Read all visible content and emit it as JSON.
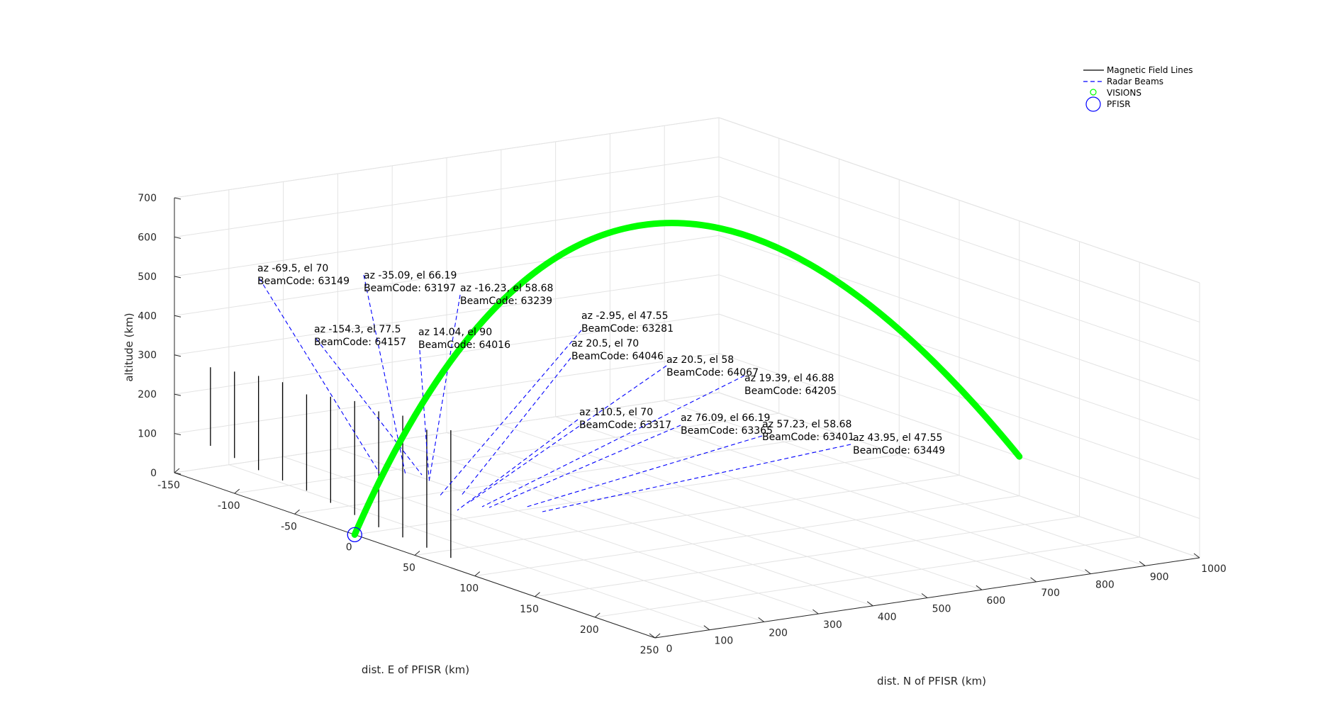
{
  "chart_data": {
    "type": "line3d",
    "axes": {
      "xlabel": "dist. E of PFISR (km)",
      "ylabel": "dist. N of PFISR (km)",
      "zlabel": "altitude (km)",
      "xlim": [
        -150,
        250
      ],
      "ylim": [
        0,
        1000
      ],
      "zlim": [
        0,
        700
      ],
      "xticks": [
        "-150",
        "-100",
        "-50",
        "0",
        "50",
        "100",
        "150",
        "200",
        "250"
      ],
      "yticks": [
        "0",
        "100",
        "200",
        "300",
        "400",
        "500",
        "600",
        "700",
        "800",
        "900",
        "1000"
      ],
      "zticks": [
        "0",
        "100",
        "200",
        "300",
        "400",
        "500",
        "600",
        "700"
      ],
      "grid": true
    },
    "legend": {
      "placement": "top-right",
      "entries": [
        {
          "label": "Magnetic Field Lines",
          "style": "solid",
          "color": "#000000"
        },
        {
          "label": "Radar Beams",
          "style": "dashed",
          "color": "#0000ff"
        },
        {
          "label": "VISIONS",
          "style": "marker-small-circle",
          "color": "#00ff00"
        },
        {
          "label": "PFISR",
          "style": "marker-large-circle",
          "color": "#0000ff"
        }
      ]
    },
    "pfisr": {
      "x": 0,
      "y": 0,
      "z": 0
    },
    "visions_trajectory": {
      "apex": {
        "x": 40,
        "y": 450,
        "z": 740
      },
      "end": {
        "x": 100,
        "y": 1000,
        "z": 100
      }
    },
    "field_lines": [
      {
        "x": -120,
        "y": 0,
        "z0": 300,
        "z1": 100
      },
      {
        "x": -100,
        "y": 0,
        "z0": 310,
        "z1": 90
      },
      {
        "x": -80,
        "y": 0,
        "z0": 320,
        "z1": 80
      },
      {
        "x": -60,
        "y": 0,
        "z0": 325,
        "z1": 75
      },
      {
        "x": -40,
        "y": 0,
        "z0": 315,
        "z1": 70
      },
      {
        "x": -20,
        "y": 0,
        "z0": 330,
        "z1": 60
      },
      {
        "x": 0,
        "y": 0,
        "z0": 340,
        "z1": 50
      },
      {
        "x": 20,
        "y": 0,
        "z0": 335,
        "z1": 40
      },
      {
        "x": 40,
        "y": 0,
        "z0": 345,
        "z1": 35
      },
      {
        "x": 60,
        "y": 0,
        "z0": 330,
        "z1": 30
      },
      {
        "x": 80,
        "y": 0,
        "z0": 350,
        "z1": 25
      }
    ],
    "beams": [
      {
        "az": "-69.5",
        "el": "70",
        "code": "63149"
      },
      {
        "az": "-35.09",
        "el": "66.19",
        "code": "63197"
      },
      {
        "az": "-16.23",
        "el": "58.68",
        "code": "63239"
      },
      {
        "az": "-154.3",
        "el": "77.5",
        "code": "64157"
      },
      {
        "az": "14.04",
        "el": "90",
        "code": "64016"
      },
      {
        "az": "-2.95",
        "el": "47.55",
        "code": "63281"
      },
      {
        "az": "20.5",
        "el": "70",
        "code": "64046"
      },
      {
        "az": "20.5",
        "el": "58",
        "code": "64067"
      },
      {
        "az": "19.39",
        "el": "46.88",
        "code": "64205"
      },
      {
        "az": "110.5",
        "el": "70",
        "code": "63317"
      },
      {
        "az": "76.09",
        "el": "66.19",
        "code": "63365"
      },
      {
        "az": "57.23",
        "el": "58.68",
        "code": "63401"
      },
      {
        "az": "43.95",
        "el": "47.55",
        "code": "63449"
      }
    ]
  }
}
